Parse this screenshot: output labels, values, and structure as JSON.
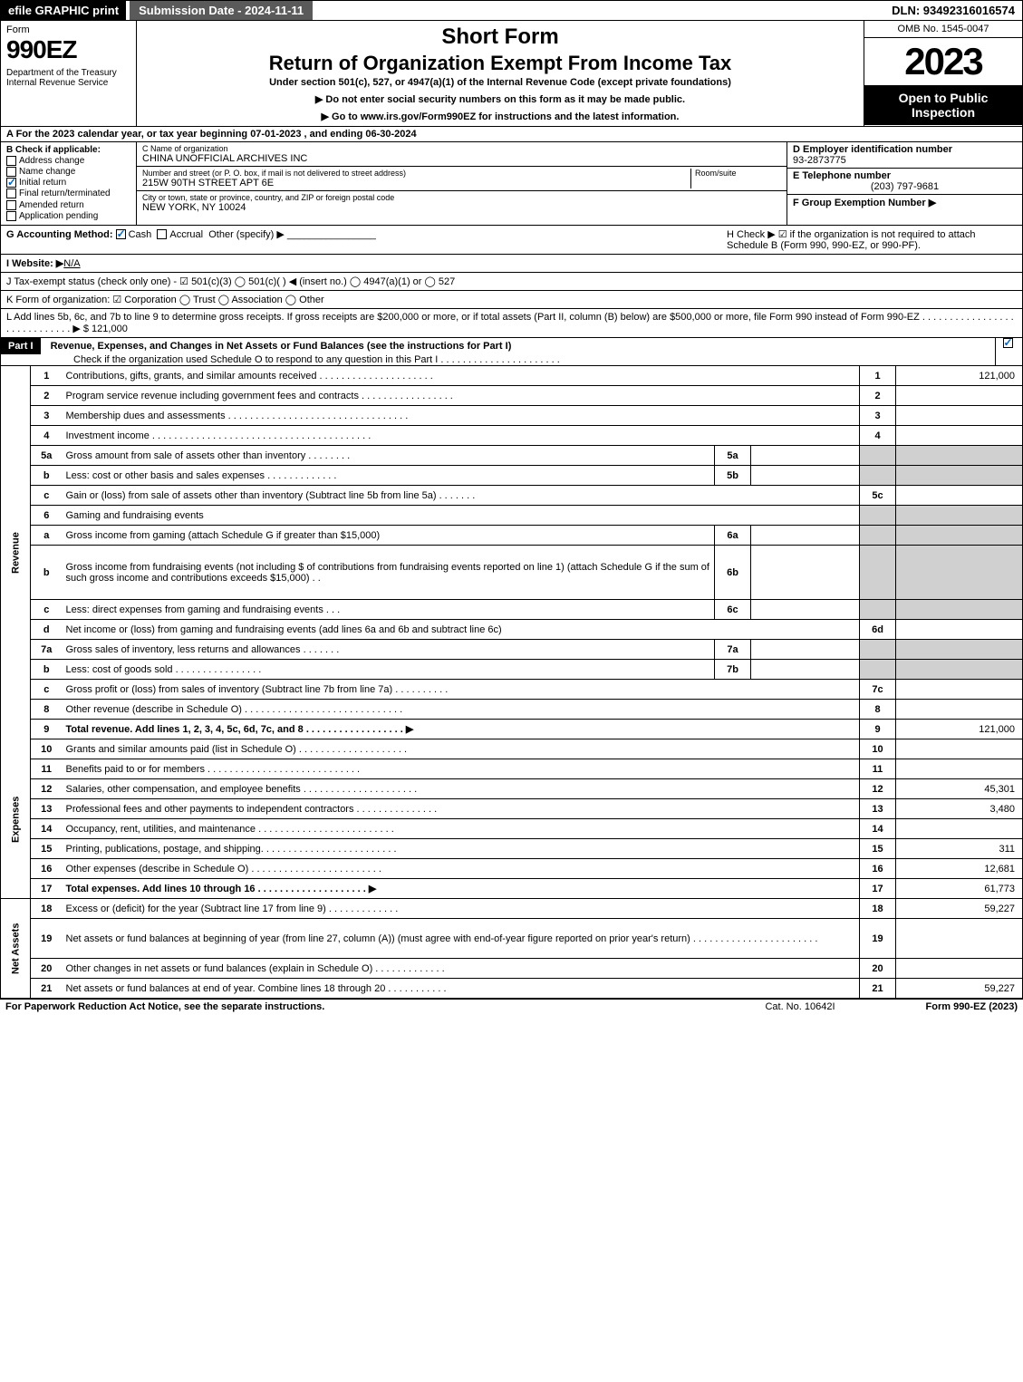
{
  "top": {
    "efile": "efile GRAPHIC print",
    "submission": "Submission Date - 2024-11-11",
    "dln": "DLN: 93492316016574"
  },
  "header": {
    "form_label": "Form",
    "form_number": "990EZ",
    "dept": "Department of the Treasury\nInternal Revenue Service",
    "short": "Short Form",
    "title": "Return of Organization Exempt From Income Tax",
    "subtitle": "Under section 501(c), 527, or 4947(a)(1) of the Internal Revenue Code (except private foundations)",
    "note1": "▶ Do not enter social security numbers on this form as it may be made public.",
    "note2": "▶ Go to www.irs.gov/Form990EZ for instructions and the latest information.",
    "omb": "OMB No. 1545-0047",
    "year": "2023",
    "open": "Open to Public Inspection"
  },
  "line_a": "A  For the 2023 calendar year, or tax year beginning 07-01-2023 , and ending 06-30-2024",
  "sec_b": {
    "title": "B  Check if applicable:",
    "items": [
      "Address change",
      "Name change",
      "Initial return",
      "Final return/terminated",
      "Amended return",
      "Application pending"
    ],
    "checked_idx": 2
  },
  "sec_c": {
    "name_lbl": "C Name of organization",
    "name": "CHINA UNOFFICIAL ARCHIVES INC",
    "addr_lbl": "Number and street (or P. O. box, if mail is not delivered to street address)",
    "room_lbl": "Room/suite",
    "addr": "215W 90TH STREET APT 6E",
    "city_lbl": "City or town, state or province, country, and ZIP or foreign postal code",
    "city": "NEW YORK, NY  10024"
  },
  "sec_d": {
    "ein_lbl": "D Employer identification number",
    "ein": "93-2873775",
    "tel_lbl": "E Telephone number",
    "tel": "(203) 797-9681",
    "grp_lbl": "F Group Exemption Number  ▶"
  },
  "line_g": {
    "label": "G Accounting Method:",
    "cash": "Cash",
    "accrual": "Accrual",
    "other": "Other (specify) ▶"
  },
  "line_h": "H  Check ▶ ☑ if the organization is not required to attach Schedule B (Form 990, 990-EZ, or 990-PF).",
  "line_i": {
    "label": "I Website: ▶",
    "val": "N/A"
  },
  "line_j": "J Tax-exempt status (check only one) - ☑ 501(c)(3)  ◯ 501(c)(  ) ◀ (insert no.)  ◯ 4947(a)(1) or  ◯ 527",
  "line_k": "K Form of organization:  ☑ Corporation  ◯ Trust  ◯ Association  ◯ Other",
  "line_l": {
    "text": "L Add lines 5b, 6c, and 7b to line 9 to determine gross receipts. If gross receipts are $200,000 or more, or if total assets (Part II, column (B) below) are $500,000 or more, file Form 990 instead of Form 990-EZ . . . . . . . . . . . . . . . . . . . . . . . . . . . . . ▶ $",
    "amount": "121,000"
  },
  "part1": {
    "hdr": "Part I",
    "title": "Revenue, Expenses, and Changes in Net Assets or Fund Balances (see the instructions for Part I)",
    "sub": "Check if the organization used Schedule O to respond to any question in this Part I . . . . . . . . . . . . . . . . . . . . . ."
  },
  "sections": {
    "revenue": "Revenue",
    "expenses": "Expenses",
    "netassets": "Net Assets"
  },
  "lines": [
    {
      "n": "1",
      "d": "Contributions, gifts, grants, and similar amounts received . . . . . . . . . . . . . . . . . . . . .",
      "rn": "1",
      "amt": "121,000"
    },
    {
      "n": "2",
      "d": "Program service revenue including government fees and contracts . . . . . . . . . . . . . . . . .",
      "rn": "2",
      "amt": ""
    },
    {
      "n": "3",
      "d": "Membership dues and assessments . . . . . . . . . . . . . . . . . . . . . . . . . . . . . . . . .",
      "rn": "3",
      "amt": ""
    },
    {
      "n": "4",
      "d": "Investment income . . . . . . . . . . . . . . . . . . . . . . . . . . . . . . . . . . . . . . . .",
      "rn": "4",
      "amt": ""
    },
    {
      "n": "5a",
      "d": "Gross amount from sale of assets other than inventory . . . . . . . .",
      "sn": "5a",
      "sv": "",
      "shaded": true
    },
    {
      "n": "b",
      "d": "Less: cost or other basis and sales expenses . . . . . . . . . . . . .",
      "sn": "5b",
      "sv": "",
      "shaded": true
    },
    {
      "n": "c",
      "d": "Gain or (loss) from sale of assets other than inventory (Subtract line 5b from line 5a) . . . . . . .",
      "rn": "5c",
      "amt": ""
    },
    {
      "n": "6",
      "d": "Gaming and fundraising events",
      "shaded": true,
      "noright": true
    },
    {
      "n": "a",
      "d": "Gross income from gaming (attach Schedule G if greater than $15,000)",
      "sn": "6a",
      "sv": "",
      "shaded": true
    },
    {
      "n": "b",
      "d": "Gross income from fundraising events (not including $                      of contributions from fundraising events reported on line 1) (attach Schedule G if the sum of such gross income and contributions exceeds $15,000) . .",
      "sn": "6b",
      "sv": "",
      "shaded": true,
      "tall": true
    },
    {
      "n": "c",
      "d": "Less: direct expenses from gaming and fundraising events     . . .",
      "sn": "6c",
      "sv": "",
      "shaded": true
    },
    {
      "n": "d",
      "d": "Net income or (loss) from gaming and fundraising events (add lines 6a and 6b and subtract line 6c)",
      "rn": "6d",
      "amt": ""
    },
    {
      "n": "7a",
      "d": "Gross sales of inventory, less returns and allowances . . . . . . .",
      "sn": "7a",
      "sv": "",
      "shaded": true
    },
    {
      "n": "b",
      "d": "Less: cost of goods sold         . . . . . . . . . . . . . . . .",
      "sn": "7b",
      "sv": "",
      "shaded": true
    },
    {
      "n": "c",
      "d": "Gross profit or (loss) from sales of inventory (Subtract line 7b from line 7a) . . . . . . . . . .",
      "rn": "7c",
      "amt": ""
    },
    {
      "n": "8",
      "d": "Other revenue (describe in Schedule O) . . . . . . . . . . . . . . . . . . . . . . . . . . . . .",
      "rn": "8",
      "amt": ""
    },
    {
      "n": "9",
      "d": "Total revenue. Add lines 1, 2, 3, 4, 5c, 6d, 7c, and 8  . . . . . . . . . . . . . . . . . .    ▶",
      "rn": "9",
      "amt": "121,000",
      "bold": true
    }
  ],
  "exp_lines": [
    {
      "n": "10",
      "d": "Grants and similar amounts paid (list in Schedule O) . . . . . . . . . . . . . . . . . . . .",
      "rn": "10",
      "amt": ""
    },
    {
      "n": "11",
      "d": "Benefits paid to or for members     . . . . . . . . . . . . . . . . . . . . . . . . . . . .",
      "rn": "11",
      "amt": ""
    },
    {
      "n": "12",
      "d": "Salaries, other compensation, and employee benefits . . . . . . . . . . . . . . . . . . . . .",
      "rn": "12",
      "amt": "45,301"
    },
    {
      "n": "13",
      "d": "Professional fees and other payments to independent contractors . . . . . . . . . . . . . . .",
      "rn": "13",
      "amt": "3,480"
    },
    {
      "n": "14",
      "d": "Occupancy, rent, utilities, and maintenance . . . . . . . . . . . . . . . . . . . . . . . . .",
      "rn": "14",
      "amt": ""
    },
    {
      "n": "15",
      "d": "Printing, publications, postage, and shipping. . . . . . . . . . . . . . . . . . . . . . . . .",
      "rn": "15",
      "amt": "311"
    },
    {
      "n": "16",
      "d": "Other expenses (describe in Schedule O)     . . . . . . . . . . . . . . . . . . . . . . . .",
      "rn": "16",
      "amt": "12,681"
    },
    {
      "n": "17",
      "d": "Total expenses. Add lines 10 through 16     . . . . . . . . . . . . . . . . . . . .    ▶",
      "rn": "17",
      "amt": "61,773",
      "bold": true
    }
  ],
  "net_lines": [
    {
      "n": "18",
      "d": "Excess or (deficit) for the year (Subtract line 17 from line 9)       . . . . . . . . . . . . .",
      "rn": "18",
      "amt": "59,227"
    },
    {
      "n": "19",
      "d": "Net assets or fund balances at beginning of year (from line 27, column (A)) (must agree with end-of-year figure reported on prior year's return) . . . . . . . . . . . . . . . . . . . . . . .",
      "rn": "19",
      "amt": "",
      "tall": true
    },
    {
      "n": "20",
      "d": "Other changes in net assets or fund balances (explain in Schedule O) . . . . . . . . . . . . .",
      "rn": "20",
      "amt": ""
    },
    {
      "n": "21",
      "d": "Net assets or fund balances at end of year. Combine lines 18 through 20 . . . . . . . . . . .",
      "rn": "21",
      "amt": "59,227"
    }
  ],
  "footer": {
    "left": "For Paperwork Reduction Act Notice, see the separate instructions.",
    "mid": "Cat. No. 10642I",
    "right": "Form 990-EZ (2023)"
  }
}
